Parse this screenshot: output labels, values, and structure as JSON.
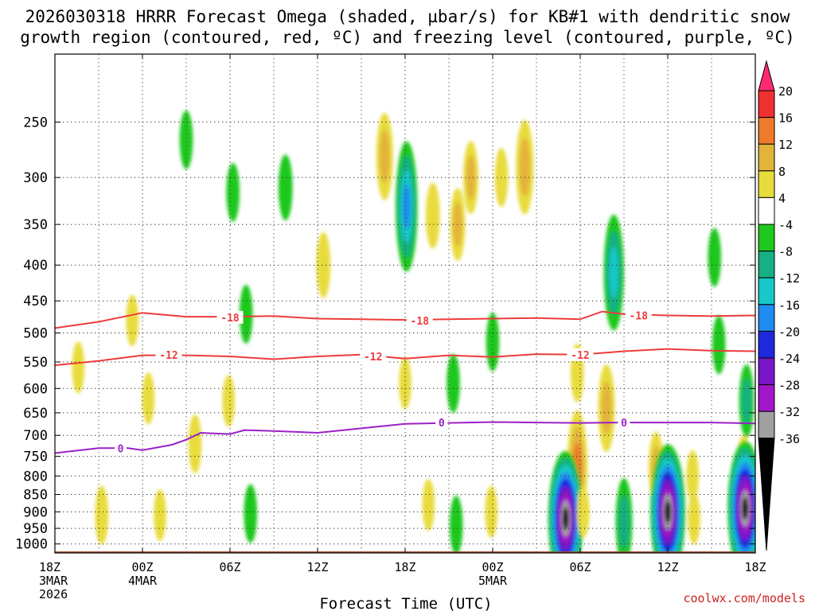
{
  "title": {
    "line1": "2026030318 HRRR Forecast Omega (shaded, µbar/s) for KB#1 with dendritic snow",
    "line2": "growth region (contoured, red, ºC) and freezing level (contoured, purple, ºC)"
  },
  "credit": "coolwx.com/models",
  "chart_data": {
    "type": "heatmap",
    "title": "2026030318 HRRR Forecast Omega (shaded, µbar/s) for KB#1 with dendritic snow growth region (contoured, red, ºC) and freezing level (contoured, purple, ºC)",
    "xlabel": "Forecast Time (UTC)",
    "ylabel": "",
    "y_axis": {
      "scale": "log-pressure",
      "range_hpa": [
        1030,
        200
      ],
      "ticks": [
        250,
        300,
        350,
        400,
        450,
        500,
        550,
        600,
        650,
        700,
        750,
        800,
        850,
        900,
        950,
        1000
      ]
    },
    "x_axis": {
      "range_hours": [
        0,
        48
      ],
      "ticks": [
        {
          "hour": 0,
          "label": [
            "18Z",
            "3MAR",
            "2026"
          ]
        },
        {
          "hour": 6,
          "label": [
            "00Z",
            "4MAR"
          ]
        },
        {
          "hour": 12,
          "label": [
            "06Z"
          ]
        },
        {
          "hour": 18,
          "label": [
            "12Z"
          ]
        },
        {
          "hour": 24,
          "label": [
            "18Z"
          ]
        },
        {
          "hour": 30,
          "label": [
            "00Z",
            "5MAR"
          ]
        },
        {
          "hour": 36,
          "label": [
            "06Z"
          ]
        },
        {
          "hour": 42,
          "label": [
            "12Z"
          ]
        },
        {
          "hour": 48,
          "label": [
            "18Z"
          ]
        }
      ],
      "minor_gridlines_hours": [
        3,
        9,
        15,
        21,
        27,
        33,
        39,
        45
      ]
    },
    "grid": true,
    "colorbar": {
      "position": "right",
      "levels": [
        20,
        16,
        12,
        8,
        4,
        -4,
        -8,
        -12,
        -16,
        -20,
        -24,
        -28,
        -32,
        -36
      ],
      "colors": [
        "#ff2a6e",
        "#ee3030",
        "#ee7a2c",
        "#e3b43a",
        "#e8dc3c",
        "#ffffff",
        "#1ec81e",
        "#16b082",
        "#16c8c8",
        "#1e8cf0",
        "#1e28dc",
        "#7a16c8",
        "#a016c8",
        "#a0a0a0",
        "#000000"
      ]
    },
    "omega_features": [
      {
        "hour": 9.0,
        "hpa": 265,
        "value": -6
      },
      {
        "hour": 1.6,
        "hpa": 560,
        "value": 5
      },
      {
        "hour": 5.3,
        "hpa": 480,
        "value": 5
      },
      {
        "hour": 6.4,
        "hpa": 620,
        "value": 5
      },
      {
        "hour": 3.2,
        "hpa": 910,
        "value": 6
      },
      {
        "hour": 7.2,
        "hpa": 910,
        "value": 5
      },
      {
        "hour": 9.6,
        "hpa": 720,
        "value": 6
      },
      {
        "hour": 11.9,
        "hpa": 625,
        "value": 5
      },
      {
        "hour": 12.2,
        "hpa": 315,
        "value": -6
      },
      {
        "hour": 13.1,
        "hpa": 470,
        "value": -6
      },
      {
        "hour": 13.4,
        "hpa": 905,
        "value": -6
      },
      {
        "hour": 15.8,
        "hpa": 310,
        "value": -7
      },
      {
        "hour": 18.4,
        "hpa": 400,
        "value": 7
      },
      {
        "hour": 22.6,
        "hpa": 280,
        "value": 10
      },
      {
        "hour": 24.1,
        "hpa": 330,
        "value": -16
      },
      {
        "hour": 25.9,
        "hpa": 340,
        "value": 7
      },
      {
        "hour": 27.6,
        "hpa": 350,
        "value": 8
      },
      {
        "hour": 28.5,
        "hpa": 300,
        "value": 8
      },
      {
        "hour": 30.6,
        "hpa": 300,
        "value": 6
      },
      {
        "hour": 32.2,
        "hpa": 290,
        "value": 11
      },
      {
        "hour": 24.0,
        "hpa": 590,
        "value": 5
      },
      {
        "hour": 25.6,
        "hpa": 880,
        "value": 5
      },
      {
        "hour": 27.3,
        "hpa": 590,
        "value": -6
      },
      {
        "hour": 27.5,
        "hpa": 940,
        "value": -6
      },
      {
        "hour": 30.0,
        "hpa": 515,
        "value": -6
      },
      {
        "hour": 29.9,
        "hpa": 900,
        "value": 5
      },
      {
        "hour": 35.8,
        "hpa": 780,
        "value": 14
      },
      {
        "hour": 35.8,
        "hpa": 570,
        "value": 6
      },
      {
        "hour": 35.0,
        "hpa": 920,
        "value": -36
      },
      {
        "hour": 36.2,
        "hpa": 900,
        "value": 5
      },
      {
        "hour": 38.3,
        "hpa": 410,
        "value": -14
      },
      {
        "hour": 37.8,
        "hpa": 640,
        "value": 10
      },
      {
        "hour": 39.0,
        "hpa": 930,
        "value": -10
      },
      {
        "hour": 41.2,
        "hpa": 780,
        "value": 8
      },
      {
        "hour": 42.0,
        "hpa": 900,
        "value": -36
      },
      {
        "hour": 43.7,
        "hpa": 800,
        "value": 5
      },
      {
        "hour": 43.8,
        "hpa": 920,
        "value": 5
      },
      {
        "hour": 45.2,
        "hpa": 390,
        "value": -6
      },
      {
        "hour": 45.5,
        "hpa": 520,
        "value": -6
      },
      {
        "hour": 47.4,
        "hpa": 625,
        "value": -8
      },
      {
        "hour": 47.2,
        "hpa": 780,
        "value": 7
      },
      {
        "hour": 47.3,
        "hpa": 890,
        "value": -36
      }
    ],
    "contours": [
      {
        "name": "-18",
        "color": "#ee3b3b",
        "points": [
          [
            0,
            492
          ],
          [
            3,
            482
          ],
          [
            6,
            468
          ],
          [
            9,
            474
          ],
          [
            12,
            474
          ],
          [
            15,
            473
          ],
          [
            18,
            477
          ],
          [
            21,
            478
          ],
          [
            24,
            479
          ],
          [
            27,
            478
          ],
          [
            30,
            477
          ],
          [
            33,
            476
          ],
          [
            36,
            478
          ],
          [
            37.5,
            466
          ],
          [
            39,
            470
          ],
          [
            42,
            472
          ],
          [
            45,
            473
          ],
          [
            48,
            472
          ]
        ],
        "labels": [
          [
            12.0,
            475
          ],
          [
            25.0,
            480
          ],
          [
            40.0,
            472
          ]
        ]
      },
      {
        "name": "-12",
        "color": "#ee3b3b",
        "points": [
          [
            0,
            556
          ],
          [
            3,
            548
          ],
          [
            6,
            538
          ],
          [
            9,
            538
          ],
          [
            12,
            540
          ],
          [
            15,
            545
          ],
          [
            18,
            540
          ],
          [
            21,
            537
          ],
          [
            24,
            544
          ],
          [
            27,
            538
          ],
          [
            30,
            541
          ],
          [
            33,
            536
          ],
          [
            36,
            537
          ],
          [
            39,
            531
          ],
          [
            42,
            527
          ],
          [
            45,
            530
          ],
          [
            48,
            531
          ]
        ],
        "labels": [
          [
            7.8,
            537
          ],
          [
            21.8,
            540
          ],
          [
            36.0,
            537
          ]
        ]
      },
      {
        "name": "0",
        "color": "#9b20c8",
        "points": [
          [
            0,
            742
          ],
          [
            3,
            730
          ],
          [
            5,
            730
          ],
          [
            6,
            735
          ],
          [
            8,
            722
          ],
          [
            9,
            710
          ],
          [
            10,
            694
          ],
          [
            12,
            697
          ],
          [
            13,
            688
          ],
          [
            15,
            690
          ],
          [
            18,
            694
          ],
          [
            21,
            684
          ],
          [
            24,
            674
          ],
          [
            27,
            672
          ],
          [
            30,
            670
          ],
          [
            33,
            671
          ],
          [
            36,
            672
          ],
          [
            39,
            671
          ],
          [
            42,
            671
          ],
          [
            45,
            671
          ],
          [
            48,
            673
          ]
        ],
        "labels": [
          [
            4.5,
            730
          ],
          [
            26.5,
            671
          ],
          [
            39.0,
            671
          ]
        ]
      }
    ]
  }
}
